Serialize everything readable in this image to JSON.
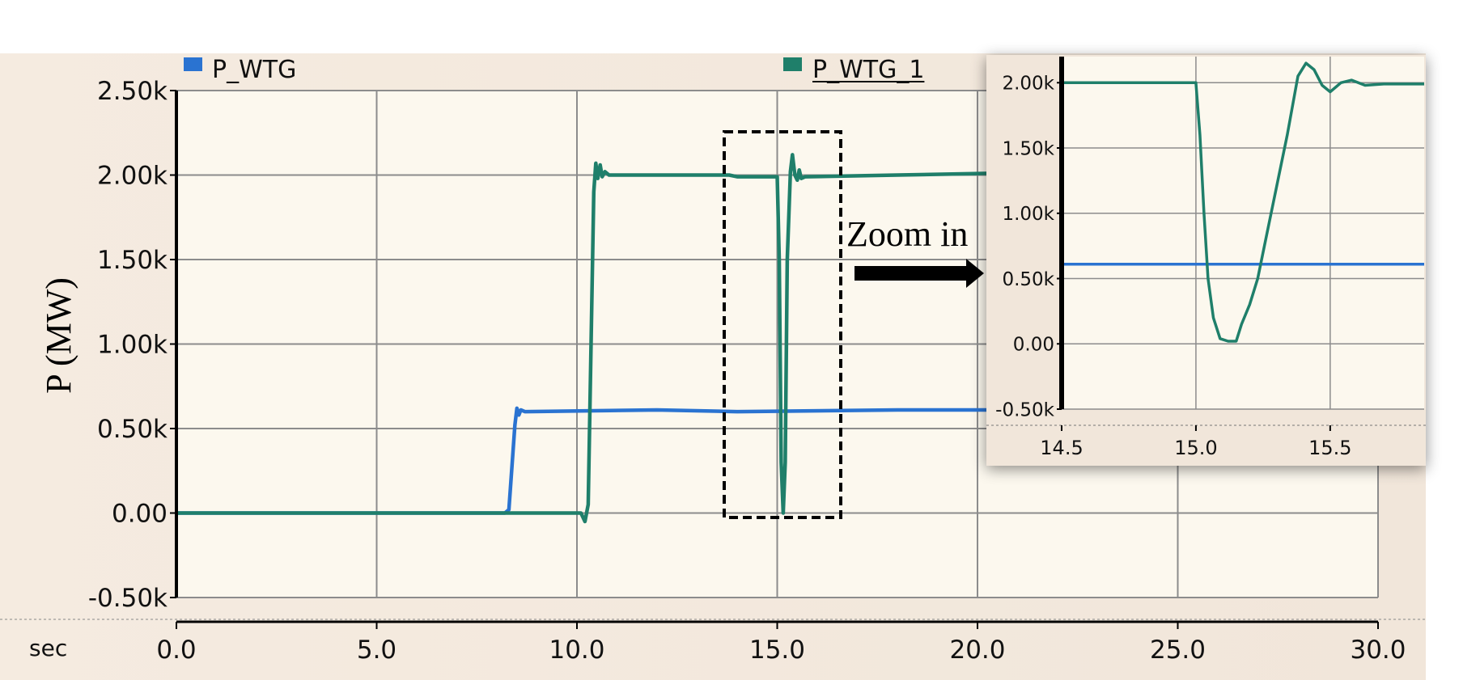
{
  "chart_data": [
    {
      "type": "line",
      "title": "",
      "xlabel": "sec",
      "ylabel": "P (MW)",
      "xlim": [
        0,
        30
      ],
      "ylim": [
        -0.5,
        2.5
      ],
      "x_ticks": [
        "0.0",
        "5.0",
        "10.0",
        "15.0",
        "20.0",
        "25.0",
        "30.0"
      ],
      "y_ticks": [
        "2.50k",
        "2.00k",
        "1.50k",
        "1.00k",
        "0.50k",
        "0.00",
        "-0.50k"
      ],
      "grid": true,
      "legend": "top",
      "series": [
        {
          "name": "P_WTG",
          "color": "#2a73d1",
          "points": [
            [
              0,
              0
            ],
            [
              8.2,
              0
            ],
            [
              8.3,
              0.02
            ],
            [
              8.45,
              0.52
            ],
            [
              8.5,
              0.62
            ],
            [
              8.55,
              0.58
            ],
            [
              8.6,
              0.61
            ],
            [
              8.7,
              0.6
            ],
            [
              12,
              0.61
            ],
            [
              14,
              0.6
            ],
            [
              18,
              0.61
            ],
            [
              20.3,
              0.61
            ]
          ]
        },
        {
          "name": "P_WTG_1",
          "color": "#1f7f6a",
          "points": [
            [
              0,
              0
            ],
            [
              10.1,
              0
            ],
            [
              10.2,
              -0.05
            ],
            [
              10.28,
              0.05
            ],
            [
              10.42,
              1.9
            ],
            [
              10.47,
              2.07
            ],
            [
              10.52,
              1.98
            ],
            [
              10.58,
              2.06
            ],
            [
              10.63,
              1.99
            ],
            [
              10.7,
              2.02
            ],
            [
              10.8,
              2.0
            ],
            [
              13.8,
              2.0
            ],
            [
              14.0,
              1.99
            ],
            [
              14.5,
              1.99
            ],
            [
              15.0,
              1.99
            ],
            [
              15.05,
              1.5
            ],
            [
              15.1,
              0.3
            ],
            [
              15.15,
              0.0
            ],
            [
              15.2,
              0.3
            ],
            [
              15.25,
              1.5
            ],
            [
              15.33,
              2.02
            ],
            [
              15.38,
              2.12
            ],
            [
              15.44,
              2.0
            ],
            [
              15.5,
              1.97
            ],
            [
              15.55,
              2.03
            ],
            [
              15.6,
              1.98
            ],
            [
              15.7,
              1.99
            ],
            [
              18,
              2.0
            ],
            [
              20.3,
              2.01
            ]
          ]
        }
      ],
      "annotations": {
        "zoom_label": "Zoom in"
      }
    },
    {
      "type": "line",
      "title": "",
      "xlim": [
        14.5,
        15.85
      ],
      "ylim": [
        -0.5,
        2.2
      ],
      "x_ticks": [
        "14.5",
        "15.0",
        "15.5"
      ],
      "y_ticks": [
        "2.00k",
        "1.50k",
        "1.00k",
        "0.50k",
        "0.00",
        "-0.50k"
      ],
      "grid": true,
      "series": [
        {
          "name": "P_WTG",
          "color": "#2a73d1",
          "points": [
            [
              14.5,
              0.61
            ],
            [
              15.85,
              0.61
            ]
          ]
        },
        {
          "name": "P_WTG_1",
          "color": "#1f7f6a",
          "points": [
            [
              14.5,
              2.0
            ],
            [
              15.0,
              2.0
            ],
            [
              15.015,
              1.6
            ],
            [
              15.03,
              1.0
            ],
            [
              15.045,
              0.5
            ],
            [
              15.065,
              0.2
            ],
            [
              15.09,
              0.04
            ],
            [
              15.12,
              0.02
            ],
            [
              15.15,
              0.02
            ],
            [
              15.17,
              0.15
            ],
            [
              15.2,
              0.3
            ],
            [
              15.23,
              0.5
            ],
            [
              15.26,
              0.8
            ],
            [
              15.3,
              1.2
            ],
            [
              15.34,
              1.6
            ],
            [
              15.38,
              2.05
            ],
            [
              15.41,
              2.15
            ],
            [
              15.44,
              2.1
            ],
            [
              15.47,
              1.98
            ],
            [
              15.5,
              1.93
            ],
            [
              15.54,
              2.0
            ],
            [
              15.58,
              2.02
            ],
            [
              15.63,
              1.98
            ],
            [
              15.7,
              1.99
            ],
            [
              15.85,
              1.99
            ]
          ]
        }
      ]
    }
  ]
}
